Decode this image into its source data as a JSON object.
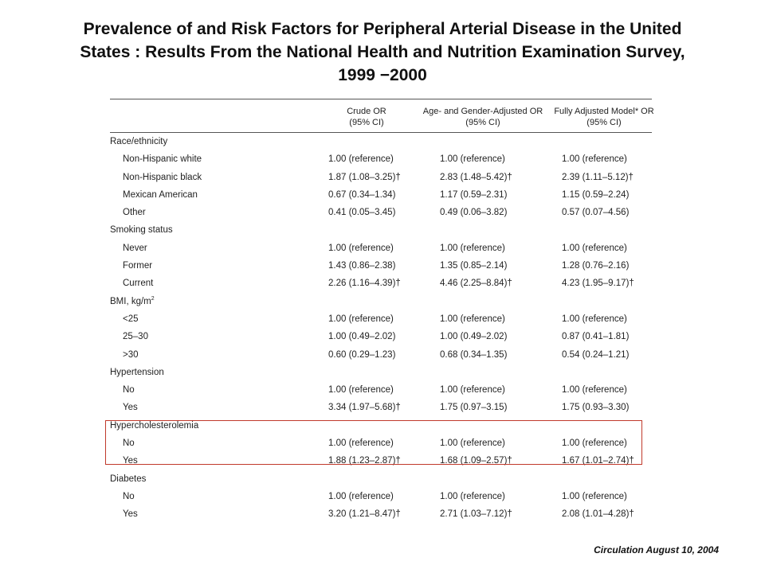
{
  "title": {
    "line1": "Prevalence of and Risk Factors for Peripheral Arterial Disease in the United",
    "line2": "States : Results From the National Health and Nutrition Examination Survey,",
    "line3": "1999 −2000"
  },
  "table": {
    "headers": [
      {
        "line1": "Crude OR",
        "line2": "(95% CI)"
      },
      {
        "line1": "Age- and Gender-Adjusted OR",
        "line2": "(95% CI)"
      },
      {
        "line1": "Fully Adjusted Model* OR",
        "line2": "(95% CI)"
      }
    ],
    "rows": [
      {
        "type": "section",
        "label": "Race/ethnicity"
      },
      {
        "type": "item",
        "label": "Non-Hispanic white",
        "v1": "1.00 (reference)",
        "v2": "1.00 (reference)",
        "v3": "1.00 (reference)"
      },
      {
        "type": "item",
        "label": "Non-Hispanic black",
        "v1": "1.87 (1.08–3.25)†",
        "v2": "2.83 (1.48–5.42)†",
        "v3": "2.39 (1.11–5.12)†"
      },
      {
        "type": "item",
        "label": "Mexican American",
        "v1": "0.67 (0.34–1.34)",
        "v2": "1.17 (0.59–2.31)",
        "v3": "1.15 (0.59–2.24)"
      },
      {
        "type": "item",
        "label": "Other",
        "v1": "0.41 (0.05–3.45)",
        "v2": "0.49 (0.06–3.82)",
        "v3": "0.57 (0.07–4.56)"
      },
      {
        "type": "section",
        "label": "Smoking status"
      },
      {
        "type": "item",
        "label": "Never",
        "v1": "1.00 (reference)",
        "v2": "1.00 (reference)",
        "v3": "1.00 (reference)"
      },
      {
        "type": "item",
        "label": "Former",
        "v1": "1.43 (0.86–2.38)",
        "v2": "1.35 (0.85–2.14)",
        "v3": "1.28 (0.76–2.16)"
      },
      {
        "type": "item",
        "label": "Current",
        "v1": "2.26 (1.16–4.39)†",
        "v2": "4.46 (2.25–8.84)†",
        "v3": "4.23 (1.95–9.17)†"
      },
      {
        "type": "section",
        "label": "BMI, kg/m",
        "sup": "2"
      },
      {
        "type": "item",
        "label": "<25",
        "v1": "1.00 (reference)",
        "v2": "1.00 (reference)",
        "v3": "1.00 (reference)"
      },
      {
        "type": "item",
        "label": "25–30",
        "v1": "1.00 (0.49–2.02)",
        "v2": "1.00 (0.49–2.02)",
        "v3": "0.87 (0.41–1.81)"
      },
      {
        "type": "item",
        "label": ">30",
        "v1": "0.60 (0.29–1.23)",
        "v2": "0.68 (0.34–1.35)",
        "v3": "0.54 (0.24–1.21)"
      },
      {
        "type": "section",
        "label": "Hypertension"
      },
      {
        "type": "item",
        "label": "No",
        "v1": "1.00 (reference)",
        "v2": "1.00 (reference)",
        "v3": "1.00 (reference)"
      },
      {
        "type": "item",
        "label": "Yes",
        "v1": "3.34 (1.97–5.68)†",
        "v2": "1.75 (0.97–3.15)",
        "v3": "1.75 (0.93–3.30)"
      },
      {
        "type": "section",
        "label": "Hypercholesterolemia"
      },
      {
        "type": "item",
        "label": "No",
        "v1": "1.00 (reference)",
        "v2": "1.00 (reference)",
        "v3": "1.00 (reference)"
      },
      {
        "type": "item",
        "label": "Yes",
        "v1": "1.88 (1.23–2.87)†",
        "v2": "1.68 (1.09–2.57)†",
        "v3": "1.67 (1.01–2.74)†"
      },
      {
        "type": "section",
        "label": "Diabetes"
      },
      {
        "type": "item",
        "label": "No",
        "v1": "1.00 (reference)",
        "v2": "1.00 (reference)",
        "v3": "1.00 (reference)"
      },
      {
        "type": "item",
        "label": "Yes",
        "v1": "3.20 (1.21–8.47)†",
        "v2": "2.71 (1.03–7.12)†",
        "v3": "2.08 (1.01–4.28)†"
      }
    ]
  },
  "citation": "Circulation August 10, 2004",
  "colors": {
    "highlight_border": "#c0392b",
    "text": "#222222"
  }
}
